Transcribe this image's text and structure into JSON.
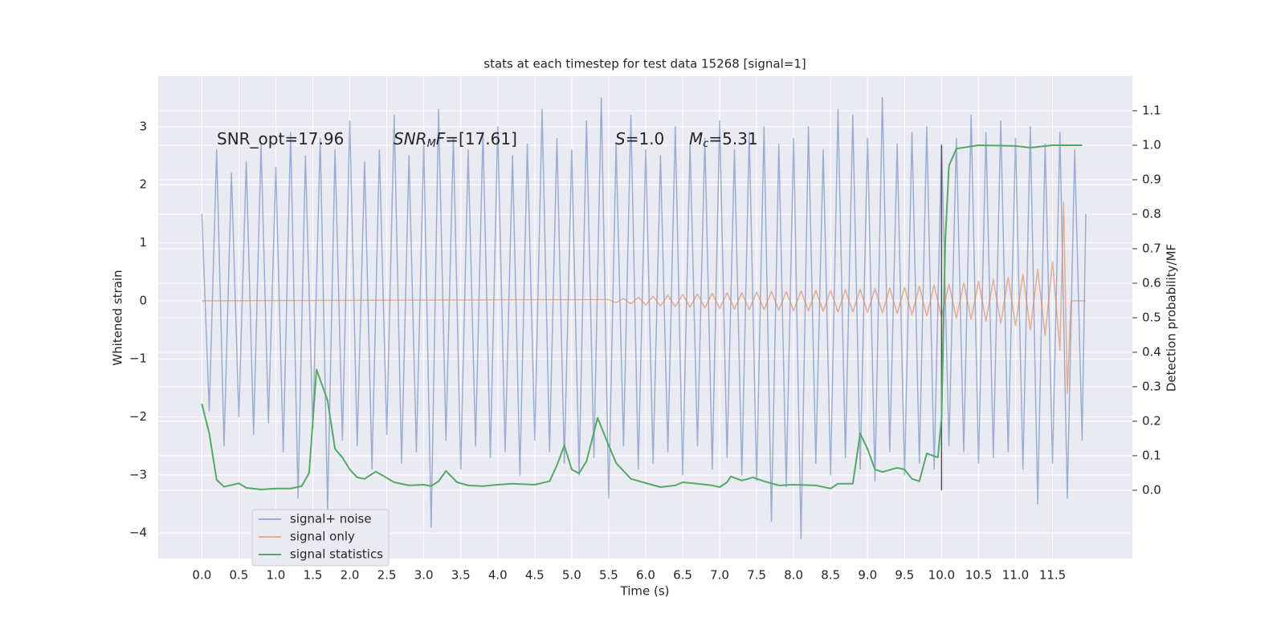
{
  "chart_data": {
    "type": "line",
    "title": "stats at each timestep for test data 15268 [signal=1]",
    "xlabel": "Time (s)",
    "ylabel": "Whitened strain",
    "y2label": "Detection probability/MF",
    "annotations": [
      [
        "SNR_opt=17.96"
      ],
      [
        "SNR",
        "M",
        "F=[17.61]"
      ],
      [
        "S",
        "=1.0"
      ],
      [
        "M",
        "c",
        "=5.31"
      ]
    ],
    "xlim": [
      -0.59,
      12.58
    ],
    "ylim": [
      -4.44,
      3.87
    ],
    "y2lim": [
      -0.198,
      1.2
    ],
    "xticks": [
      {
        "value": 0,
        "label": "0.0"
      },
      0.5,
      {
        "value": 1,
        "label": "1.0"
      },
      1.5,
      {
        "value": 2,
        "label": "2.0"
      },
      2.5,
      {
        "value": 3,
        "label": "3.0"
      },
      3.5,
      {
        "value": 4,
        "label": "4.0"
      },
      4.5,
      {
        "value": 5,
        "label": "5.0"
      },
      5.5,
      {
        "value": 6,
        "label": "6.0"
      },
      6.5,
      {
        "value": 7,
        "label": "7.0"
      },
      7.5,
      {
        "value": 8,
        "label": "8.0"
      },
      8.5,
      {
        "value": 9,
        "label": "9.0"
      },
      9.5,
      {
        "value": 10,
        "label": "10.0"
      },
      10.5,
      {
        "value": 11,
        "label": "11.0"
      },
      11.5
    ],
    "yticks": [
      {
        "value": -4,
        "label": "−4"
      },
      {
        "value": -3,
        "label": "−3"
      },
      {
        "value": -2,
        "label": "−2"
      },
      {
        "value": -1,
        "label": "−1"
      },
      0,
      1,
      2,
      3
    ],
    "y2ticks": [
      {
        "value": 0,
        "label": "0.0"
      },
      0.1,
      0.2,
      0.3,
      0.4,
      0.5,
      0.6,
      0.7,
      0.8,
      0.9,
      {
        "value": 1,
        "label": "1.0"
      },
      1.1
    ],
    "grid": true,
    "legend": "lower left",
    "vline_x": 10,
    "vline_color": "#555555",
    "series": [
      {
        "name": "signal+ noise",
        "color": "#4c72b0",
        "alpha": 0.5,
        "x": [
          0.0,
          0.1,
          0.2,
          0.3,
          0.4,
          0.5,
          0.6,
          0.7,
          0.8,
          0.9,
          1.0,
          1.1,
          1.2,
          1.3,
          1.4,
          1.5,
          1.6,
          1.7,
          1.8,
          1.9,
          2.0,
          2.1,
          2.2,
          2.3,
          2.4,
          2.5,
          2.6,
          2.7,
          2.8,
          2.9,
          3.0,
          3.1,
          3.2,
          3.3,
          3.4,
          3.5,
          3.6,
          3.7,
          3.8,
          3.9,
          4.0,
          4.1,
          4.2,
          4.3,
          4.4,
          4.5,
          4.6,
          4.7,
          4.8,
          4.9,
          5.0,
          5.1,
          5.2,
          5.3,
          5.4,
          5.5,
          5.6,
          5.7,
          5.8,
          5.9,
          6.0,
          6.1,
          6.2,
          6.3,
          6.4,
          6.5,
          6.6,
          6.7,
          6.8,
          6.9,
          7.0,
          7.1,
          7.2,
          7.3,
          7.4,
          7.5,
          7.6,
          7.7,
          7.8,
          7.9,
          8.0,
          8.1,
          8.2,
          8.3,
          8.4,
          8.5,
          8.6,
          8.7,
          8.8,
          8.9,
          9.0,
          9.1,
          9.2,
          9.3,
          9.4,
          9.5,
          9.6,
          9.7,
          9.8,
          9.9,
          10.0,
          10.1,
          10.2,
          10.3,
          10.4,
          10.5,
          10.6,
          10.7,
          10.8,
          10.9,
          11.0,
          11.1,
          11.2,
          11.3,
          11.4,
          11.5,
          11.6,
          11.7,
          11.8,
          11.9,
          11.95
        ],
        "values": [
          1.5,
          -1.9,
          2.6,
          -2.5,
          2.2,
          -2.0,
          2.4,
          -2.3,
          2.7,
          -2.1,
          2.3,
          -2.6,
          2.9,
          -3.4,
          2.5,
          -2.2,
          2.8,
          -3.6,
          2.6,
          -2.4,
          3.1,
          -2.5,
          2.4,
          -2.9,
          2.6,
          -2.3,
          3.2,
          -2.8,
          2.5,
          -2.6,
          2.7,
          -3.9,
          3.3,
          -2.4,
          2.8,
          -2.9,
          2.6,
          -2.5,
          2.9,
          -2.7,
          3.0,
          -2.6,
          2.5,
          -3.0,
          2.7,
          -2.4,
          3.3,
          -2.6,
          2.8,
          -2.8,
          2.6,
          -3.0,
          3.1,
          -2.7,
          3.5,
          -3.4,
          2.7,
          -2.5,
          3.2,
          -2.9,
          2.6,
          -2.8,
          2.5,
          -2.6,
          3.0,
          -3.0,
          2.7,
          -2.5,
          2.8,
          -2.9,
          3.1,
          -2.7,
          2.6,
          -3.0,
          2.9,
          -3.1,
          3.0,
          -3.8,
          2.7,
          -3.2,
          2.8,
          -4.1,
          3.0,
          -2.8,
          2.6,
          -3.0,
          3.3,
          -2.7,
          3.2,
          -2.9,
          2.8,
          -3.1,
          3.5,
          -2.6,
          2.7,
          -3.0,
          2.9,
          -2.8,
          3.0,
          -2.9,
          2.7,
          -2.5,
          2.8,
          -2.6,
          3.2,
          -2.8,
          2.9,
          -2.7,
          3.1,
          -2.6,
          2.8,
          -2.9,
          3.0,
          -3.5,
          2.7,
          -2.8,
          2.9,
          -3.4,
          2.6,
          -2.4,
          1.5
        ]
      },
      {
        "name": "signal only",
        "color": "#dd8452",
        "alpha": 0.6,
        "x": [
          0,
          5.5,
          5.6,
          5.7,
          5.8,
          5.9,
          6.0,
          6.1,
          6.2,
          6.3,
          6.4,
          6.5,
          6.6,
          6.7,
          6.8,
          6.9,
          7.0,
          7.1,
          7.2,
          7.3,
          7.4,
          7.5,
          7.6,
          7.7,
          7.8,
          7.9,
          8.0,
          8.1,
          8.2,
          8.3,
          8.4,
          8.5,
          8.6,
          8.7,
          8.8,
          8.9,
          9.0,
          9.1,
          9.2,
          9.3,
          9.4,
          9.5,
          9.6,
          9.7,
          9.8,
          9.9,
          10.0,
          10.1,
          10.2,
          10.3,
          10.4,
          10.5,
          10.6,
          10.7,
          10.8,
          10.9,
          11.0,
          11.1,
          11.2,
          11.3,
          11.4,
          11.5,
          11.6,
          11.65,
          11.7,
          11.75,
          11.95
        ],
        "values": [
          0,
          0.02,
          -0.03,
          0.04,
          -0.05,
          0.06,
          -0.07,
          0.08,
          -0.09,
          0.1,
          -0.1,
          0.11,
          -0.11,
          0.12,
          -0.12,
          0.13,
          -0.13,
          0.14,
          -0.14,
          0.14,
          -0.15,
          0.15,
          -0.15,
          0.16,
          -0.16,
          0.16,
          -0.17,
          0.17,
          -0.17,
          0.18,
          -0.18,
          0.18,
          -0.19,
          0.19,
          -0.19,
          0.2,
          -0.2,
          0.21,
          -0.21,
          0.22,
          -0.22,
          0.23,
          -0.24,
          0.25,
          -0.26,
          0.27,
          -0.28,
          0.29,
          -0.3,
          0.31,
          -0.32,
          0.34,
          -0.35,
          0.37,
          -0.39,
          0.41,
          -0.43,
          0.46,
          -0.5,
          0.54,
          -0.6,
          0.68,
          -0.85,
          1.7,
          -1.6,
          0,
          0
        ]
      },
      {
        "name": "signal statistics",
        "color": "#55a868",
        "alpha": 1,
        "axis": "y2",
        "x": [
          0,
          0.1,
          0.2,
          0.3,
          0.5,
          0.6,
          0.8,
          1.0,
          1.2,
          1.35,
          1.45,
          1.55,
          1.7,
          1.8,
          1.9,
          2.0,
          2.1,
          2.2,
          2.35,
          2.45,
          2.6,
          2.8,
          3.0,
          3.1,
          3.2,
          3.3,
          3.45,
          3.6,
          3.8,
          4.0,
          4.2,
          4.5,
          4.7,
          4.8,
          4.9,
          5.0,
          5.1,
          5.2,
          5.35,
          5.5,
          5.6,
          5.8,
          6.0,
          6.2,
          6.4,
          6.5,
          6.7,
          6.9,
          7.0,
          7.1,
          7.15,
          7.3,
          7.45,
          7.6,
          7.8,
          8.0,
          8.3,
          8.5,
          8.6,
          8.8,
          8.9,
          9.0,
          9.1,
          9.2,
          9.4,
          9.5,
          9.6,
          9.7,
          9.8,
          9.95,
          10.0,
          10.05,
          10.1,
          10.2,
          10.5,
          11.0,
          11.2,
          11.5,
          11.9
        ],
        "values": [
          0.25,
          0.165,
          0.03,
          0.01,
          0.02,
          0.007,
          0.002,
          0.005,
          0.005,
          0.012,
          0.05,
          0.35,
          0.26,
          0.12,
          0.095,
          0.06,
          0.037,
          0.033,
          0.054,
          0.042,
          0.023,
          0.014,
          0.016,
          0.012,
          0.026,
          0.056,
          0.023,
          0.014,
          0.012,
          0.016,
          0.019,
          0.016,
          0.026,
          0.072,
          0.13,
          0.06,
          0.049,
          0.084,
          0.21,
          0.13,
          0.079,
          0.033,
          0.021,
          0.009,
          0.014,
          0.023,
          0.019,
          0.014,
          0.009,
          0.023,
          0.04,
          0.028,
          0.037,
          0.026,
          0.014,
          0.016,
          0.014,
          0.005,
          0.019,
          0.019,
          0.165,
          0.119,
          0.06,
          0.053,
          0.065,
          0.06,
          0.033,
          0.026,
          0.107,
          0.095,
          0.21,
          0.72,
          0.94,
          0.99,
          1.0,
          0.998,
          0.993,
          1.0,
          1.0
        ]
      }
    ]
  }
}
